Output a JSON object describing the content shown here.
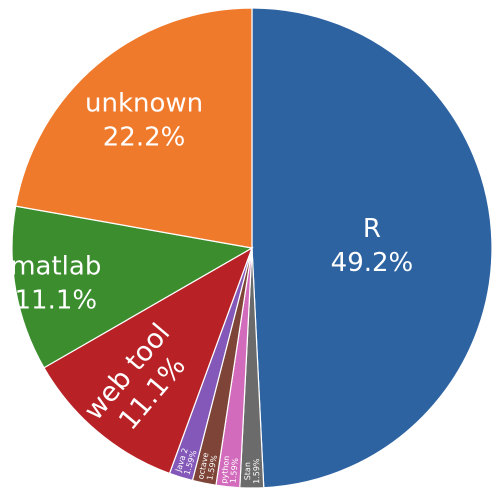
{
  "chart_data": {
    "type": "pie",
    "title": "",
    "start": "12 o'clock",
    "direction": "clockwise",
    "slices": [
      {
        "label": "R",
        "value": 49.2,
        "text": "49.2%",
        "color": "#2e63a2"
      },
      {
        "label": "Stan",
        "value": 1.59,
        "text": "1.59%",
        "color": "#6b6b6b"
      },
      {
        "label": "python",
        "value": 1.59,
        "text": "1.59%",
        "color": "#d36bbd"
      },
      {
        "label": "octave",
        "value": 1.59,
        "text": "1.59%",
        "color": "#7d4437"
      },
      {
        "label": "Java 2",
        "value": 1.59,
        "text": "1.59%",
        "color": "#8458b8"
      },
      {
        "label": "web tool",
        "value": 11.1,
        "text": "11.1%",
        "color": "#b82226"
      },
      {
        "label": "matlab",
        "value": 11.1,
        "text": "11.1%",
        "color": "#3b8d2e"
      },
      {
        "label": "unknown",
        "value": 22.2,
        "text": "22.2%",
        "color": "#f07a2c"
      }
    ]
  }
}
